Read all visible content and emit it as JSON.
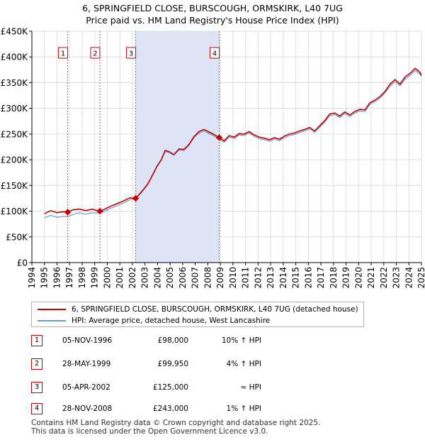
{
  "title_line1": "6, SPRINGFIELD CLOSE, BURSCOUGH, ORMSKIRK, L40 7UG",
  "title_line2": "Price paid vs. HM Land Registry's House Price Index (HPI)",
  "chart_data": {
    "type": "line",
    "x_range": [
      1994,
      2025
    ],
    "ylim": [
      0,
      450000
    ],
    "y_ticks": [
      {
        "value": 0,
        "label": "£0"
      },
      {
        "value": 50000,
        "label": "£50K"
      },
      {
        "value": 100000,
        "label": "£100K"
      },
      {
        "value": 150000,
        "label": "£150K"
      },
      {
        "value": 200000,
        "label": "£200K"
      },
      {
        "value": 250000,
        "label": "£250K"
      },
      {
        "value": 300000,
        "label": "£300K"
      },
      {
        "value": 350000,
        "label": "£350K"
      },
      {
        "value": 400000,
        "label": "£400K"
      },
      {
        "value": 450000,
        "label": "£450K"
      }
    ],
    "x_ticks": [
      "1994",
      "1995",
      "1996",
      "1997",
      "1998",
      "1999",
      "2000",
      "2001",
      "2002",
      "2003",
      "2004",
      "2005",
      "2006",
      "2007",
      "2008",
      "2009",
      "2010",
      "2011",
      "2012",
      "2013",
      "2014",
      "2015",
      "2016",
      "2017",
      "2018",
      "2019",
      "2020",
      "2021",
      "2022",
      "2023",
      "2024",
      "2025"
    ],
    "ownership_shading": {
      "from": 2002.26,
      "to": 2008.91,
      "color": "#dde4f5"
    },
    "colors": {
      "property": "#c00000",
      "hpi": "#6699cc",
      "marker_box": "#c00000",
      "vline": "#dd4444"
    },
    "series": [
      {
        "name": "6, SPRINGFIELD CLOSE, BURSCOUGH, ORMSKIRK, L40 7UG (detached house)",
        "color": "#c00000",
        "points": [
          [
            1995.0,
            95000
          ],
          [
            1995.5,
            101000
          ],
          [
            1996.0,
            97000
          ],
          [
            1996.5,
            99000
          ],
          [
            1996.85,
            98000
          ],
          [
            1997.3,
            103000
          ],
          [
            1997.8,
            104000
          ],
          [
            1998.3,
            101000
          ],
          [
            1998.8,
            104000
          ],
          [
            1999.4,
            99950
          ],
          [
            1999.8,
            104000
          ],
          [
            2000.3,
            110000
          ],
          [
            2000.8,
            115000
          ],
          [
            2001.3,
            120000
          ],
          [
            2001.8,
            126000
          ],
          [
            2002.26,
            125000
          ],
          [
            2002.7,
            137000
          ],
          [
            2003.2,
            152000
          ],
          [
            2003.6,
            170000
          ],
          [
            2003.9,
            185000
          ],
          [
            2004.3,
            200000
          ],
          [
            2004.6,
            218000
          ],
          [
            2004.9,
            216000
          ],
          [
            2005.3,
            210000
          ],
          [
            2005.7,
            221000
          ],
          [
            2006.1,
            220000
          ],
          [
            2006.5,
            230000
          ],
          [
            2006.9,
            245000
          ],
          [
            2007.3,
            255000
          ],
          [
            2007.7,
            259000
          ],
          [
            2008.1,
            254000
          ],
          [
            2008.5,
            249000
          ],
          [
            2008.91,
            243000
          ],
          [
            2009.3,
            237000
          ],
          [
            2009.7,
            247000
          ],
          [
            2010.1,
            244000
          ],
          [
            2010.5,
            251000
          ],
          [
            2010.9,
            250000
          ],
          [
            2011.3,
            255000
          ],
          [
            2011.7,
            248000
          ],
          [
            2012.1,
            244000
          ],
          [
            2012.5,
            242000
          ],
          [
            2012.9,
            239000
          ],
          [
            2013.3,
            243000
          ],
          [
            2013.7,
            240000
          ],
          [
            2014.1,
            246000
          ],
          [
            2014.5,
            250000
          ],
          [
            2014.9,
            252000
          ],
          [
            2015.3,
            256000
          ],
          [
            2015.7,
            259000
          ],
          [
            2016.1,
            263000
          ],
          [
            2016.5,
            256000
          ],
          [
            2016.9,
            266000
          ],
          [
            2017.3,
            276000
          ],
          [
            2017.7,
            289000
          ],
          [
            2018.1,
            291000
          ],
          [
            2018.5,
            285000
          ],
          [
            2018.9,
            293000
          ],
          [
            2019.3,
            287000
          ],
          [
            2019.7,
            294000
          ],
          [
            2020.1,
            298000
          ],
          [
            2020.5,
            297000
          ],
          [
            2020.9,
            311000
          ],
          [
            2021.3,
            316000
          ],
          [
            2021.7,
            323000
          ],
          [
            2022.1,
            333000
          ],
          [
            2022.5,
            347000
          ],
          [
            2022.9,
            356000
          ],
          [
            2023.3,
            347000
          ],
          [
            2023.7,
            361000
          ],
          [
            2024.1,
            368000
          ],
          [
            2024.5,
            378000
          ],
          [
            2024.85,
            371000
          ],
          [
            2025.0,
            365000
          ]
        ]
      },
      {
        "name": "HPI: Average price, detached house, West Lancashire",
        "color": "#6699cc",
        "points": [
          [
            1995.0,
            87000
          ],
          [
            1995.5,
            92000
          ],
          [
            1996.0,
            88000
          ],
          [
            1996.5,
            90000
          ],
          [
            1996.85,
            89000
          ],
          [
            1997.3,
            94000
          ],
          [
            1997.8,
            97000
          ],
          [
            1998.3,
            94000
          ],
          [
            1998.8,
            97000
          ],
          [
            1999.4,
            96000
          ],
          [
            1999.8,
            100000
          ],
          [
            2000.3,
            106000
          ],
          [
            2000.8,
            111000
          ],
          [
            2001.3,
            116000
          ],
          [
            2001.8,
            122000
          ],
          [
            2002.26,
            125000
          ],
          [
            2002.7,
            136000
          ],
          [
            2003.2,
            151000
          ],
          [
            2003.6,
            169000
          ],
          [
            2003.9,
            184000
          ],
          [
            2004.3,
            199000
          ],
          [
            2004.6,
            216000
          ],
          [
            2004.9,
            214000
          ],
          [
            2005.3,
            209000
          ],
          [
            2005.7,
            219000
          ],
          [
            2006.1,
            218000
          ],
          [
            2006.5,
            228000
          ],
          [
            2006.9,
            243000
          ],
          [
            2007.3,
            252000
          ],
          [
            2007.7,
            256000
          ],
          [
            2008.1,
            251000
          ],
          [
            2008.5,
            246000
          ],
          [
            2008.91,
            240000
          ],
          [
            2009.3,
            234000
          ],
          [
            2009.7,
            244000
          ],
          [
            2010.1,
            241000
          ],
          [
            2010.5,
            248000
          ],
          [
            2010.9,
            247000
          ],
          [
            2011.3,
            252000
          ],
          [
            2011.7,
            245000
          ],
          [
            2012.1,
            241000
          ],
          [
            2012.5,
            239000
          ],
          [
            2012.9,
            236000
          ],
          [
            2013.3,
            240000
          ],
          [
            2013.7,
            237000
          ],
          [
            2014.1,
            243000
          ],
          [
            2014.5,
            247000
          ],
          [
            2014.9,
            249000
          ],
          [
            2015.3,
            253000
          ],
          [
            2015.7,
            256000
          ],
          [
            2016.1,
            260000
          ],
          [
            2016.5,
            253000
          ],
          [
            2016.9,
            263000
          ],
          [
            2017.3,
            273000
          ],
          [
            2017.7,
            286000
          ],
          [
            2018.1,
            288000
          ],
          [
            2018.5,
            282000
          ],
          [
            2018.9,
            290000
          ],
          [
            2019.3,
            284000
          ],
          [
            2019.7,
            291000
          ],
          [
            2020.1,
            295000
          ],
          [
            2020.5,
            294000
          ],
          [
            2020.9,
            308000
          ],
          [
            2021.3,
            313000
          ],
          [
            2021.7,
            320000
          ],
          [
            2022.1,
            330000
          ],
          [
            2022.5,
            343000
          ],
          [
            2022.9,
            352000
          ],
          [
            2023.3,
            344000
          ],
          [
            2023.7,
            357000
          ],
          [
            2024.1,
            364000
          ],
          [
            2024.5,
            374000
          ],
          [
            2024.85,
            367000
          ],
          [
            2025.0,
            362000
          ]
        ]
      }
    ],
    "sales": [
      {
        "label": "1",
        "x": 1996.85,
        "price": 98000
      },
      {
        "label": "2",
        "x": 1999.41,
        "price": 99950
      },
      {
        "label": "3",
        "x": 2002.26,
        "price": 125000
      },
      {
        "label": "4",
        "x": 2008.91,
        "price": 243000
      }
    ]
  },
  "legend": {
    "property_label": "6, SPRINGFIELD CLOSE, BURSCOUGH, ORMSKIRK, L40 7UG (detached house)",
    "hpi_label": "HPI: Average price, detached house, West Lancashire"
  },
  "sales_table": [
    {
      "num": "1",
      "date": "05-NOV-1996",
      "price": "£98,000",
      "hpi": "10% ↑ HPI"
    },
    {
      "num": "2",
      "date": "28-MAY-1999",
      "price": "£99,950",
      "hpi": "4% ↑ HPI"
    },
    {
      "num": "3",
      "date": "05-APR-2002",
      "price": "£125,000",
      "hpi": "≈ HPI"
    },
    {
      "num": "4",
      "date": "28-NOV-2008",
      "price": "£243,000",
      "hpi": "1% ↑ HPI"
    }
  ],
  "footer_line1": "Contains HM Land Registry data © Crown copyright and database right 2025.",
  "footer_line2": "This data is licensed under the Open Government Licence v3.0."
}
